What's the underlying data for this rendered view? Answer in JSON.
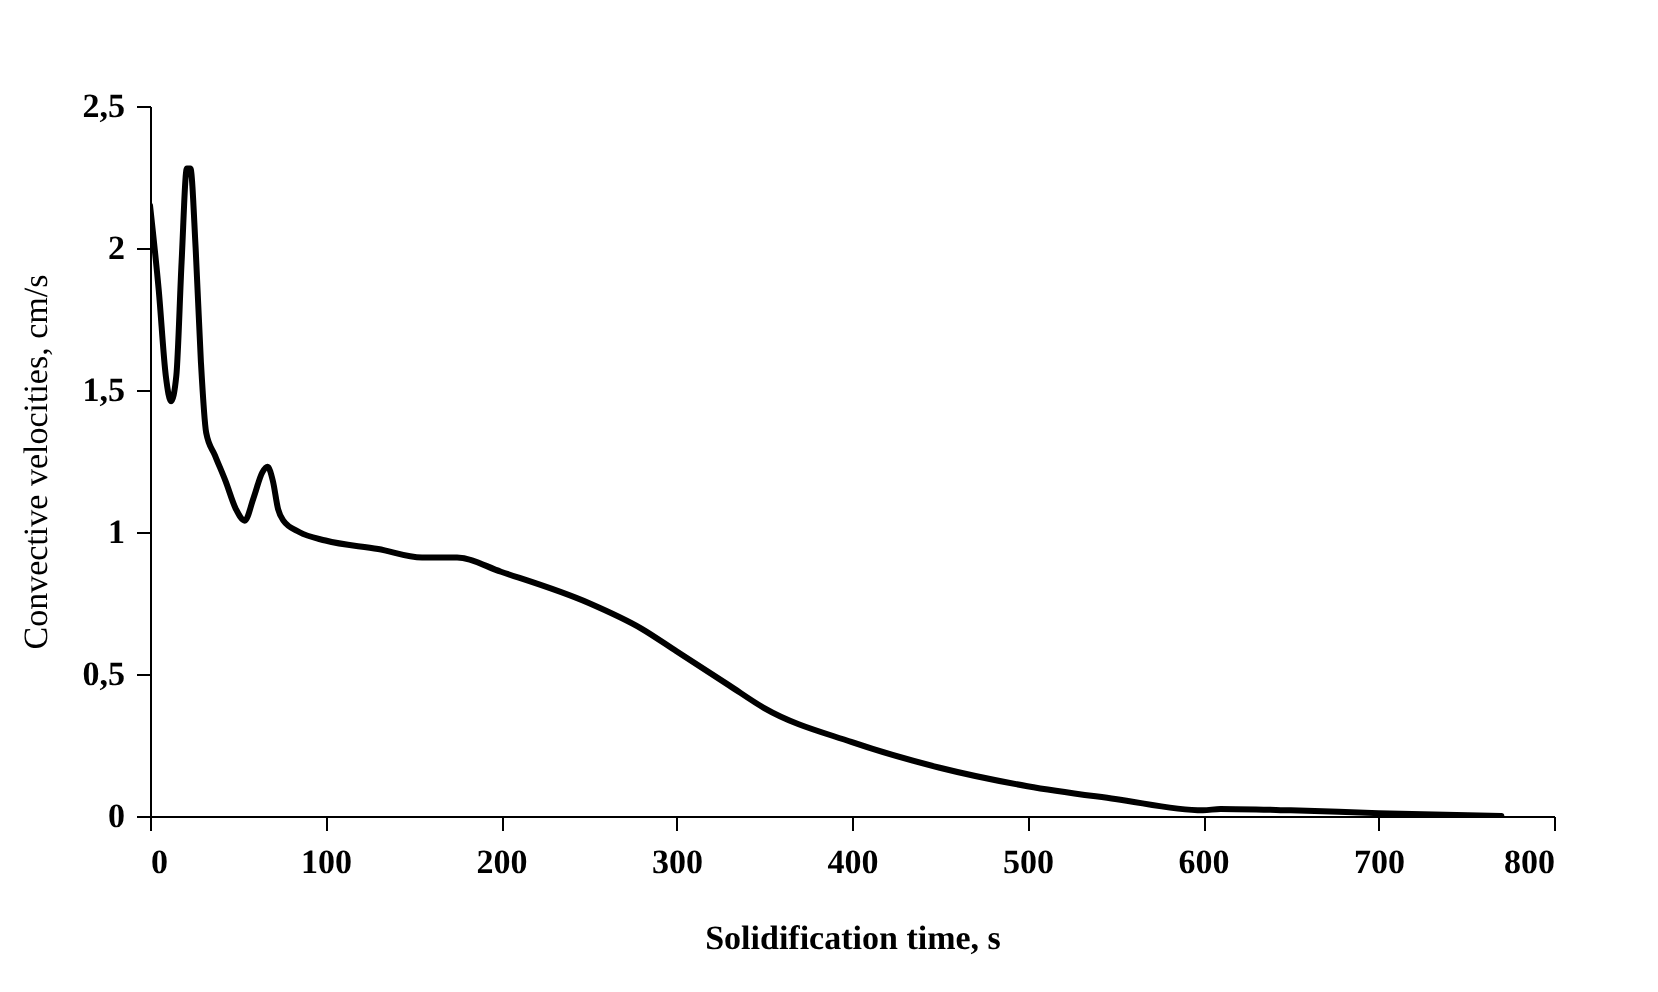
{
  "chart_data": {
    "type": "line",
    "xlabel": "Solidification time, s",
    "ylabel": "Convective velocities, cm/s",
    "x": [
      0,
      5,
      9,
      12,
      15,
      18,
      21,
      23,
      26,
      29,
      32,
      37,
      43,
      49,
      54,
      59,
      64,
      67,
      70,
      73,
      76,
      85,
      100,
      130,
      155,
      175,
      200,
      250,
      280,
      300,
      330,
      350,
      400,
      450,
      500,
      550,
      600,
      610,
      650,
      700,
      770
    ],
    "series": [
      {
        "color": "#000000",
        "values": [
          2.15,
          1.85,
          1.55,
          1.46,
          1.55,
          1.95,
          2.28,
          2.28,
          2.0,
          1.6,
          1.35,
          1.27,
          1.18,
          1.08,
          1.04,
          1.12,
          1.21,
          1.23,
          1.18,
          1.08,
          1.04,
          1.0,
          0.97,
          0.94,
          0.91,
          0.91,
          0.86,
          0.75,
          0.66,
          0.58,
          0.46,
          0.38,
          0.26,
          0.17,
          0.105,
          0.06,
          0.02,
          0.025,
          0.02,
          0.01,
          0
        ]
      }
    ],
    "xlim": [
      0,
      800
    ],
    "xticks": [
      0,
      100,
      200,
      300,
      400,
      500,
      600,
      700,
      800
    ],
    "ylim": [
      0,
      2.5
    ],
    "yticks": [
      {
        "value": 0,
        "label": "0"
      },
      {
        "value": 0.5,
        "label": "0,5"
      },
      {
        "value": 1,
        "label": "1"
      },
      {
        "value": 1.5,
        "label": "1,5"
      },
      {
        "value": 2,
        "label": "2"
      },
      {
        "value": 2.5,
        "label": "2,5"
      }
    ],
    "grid": false,
    "line_style": "solid",
    "marker": "none"
  }
}
